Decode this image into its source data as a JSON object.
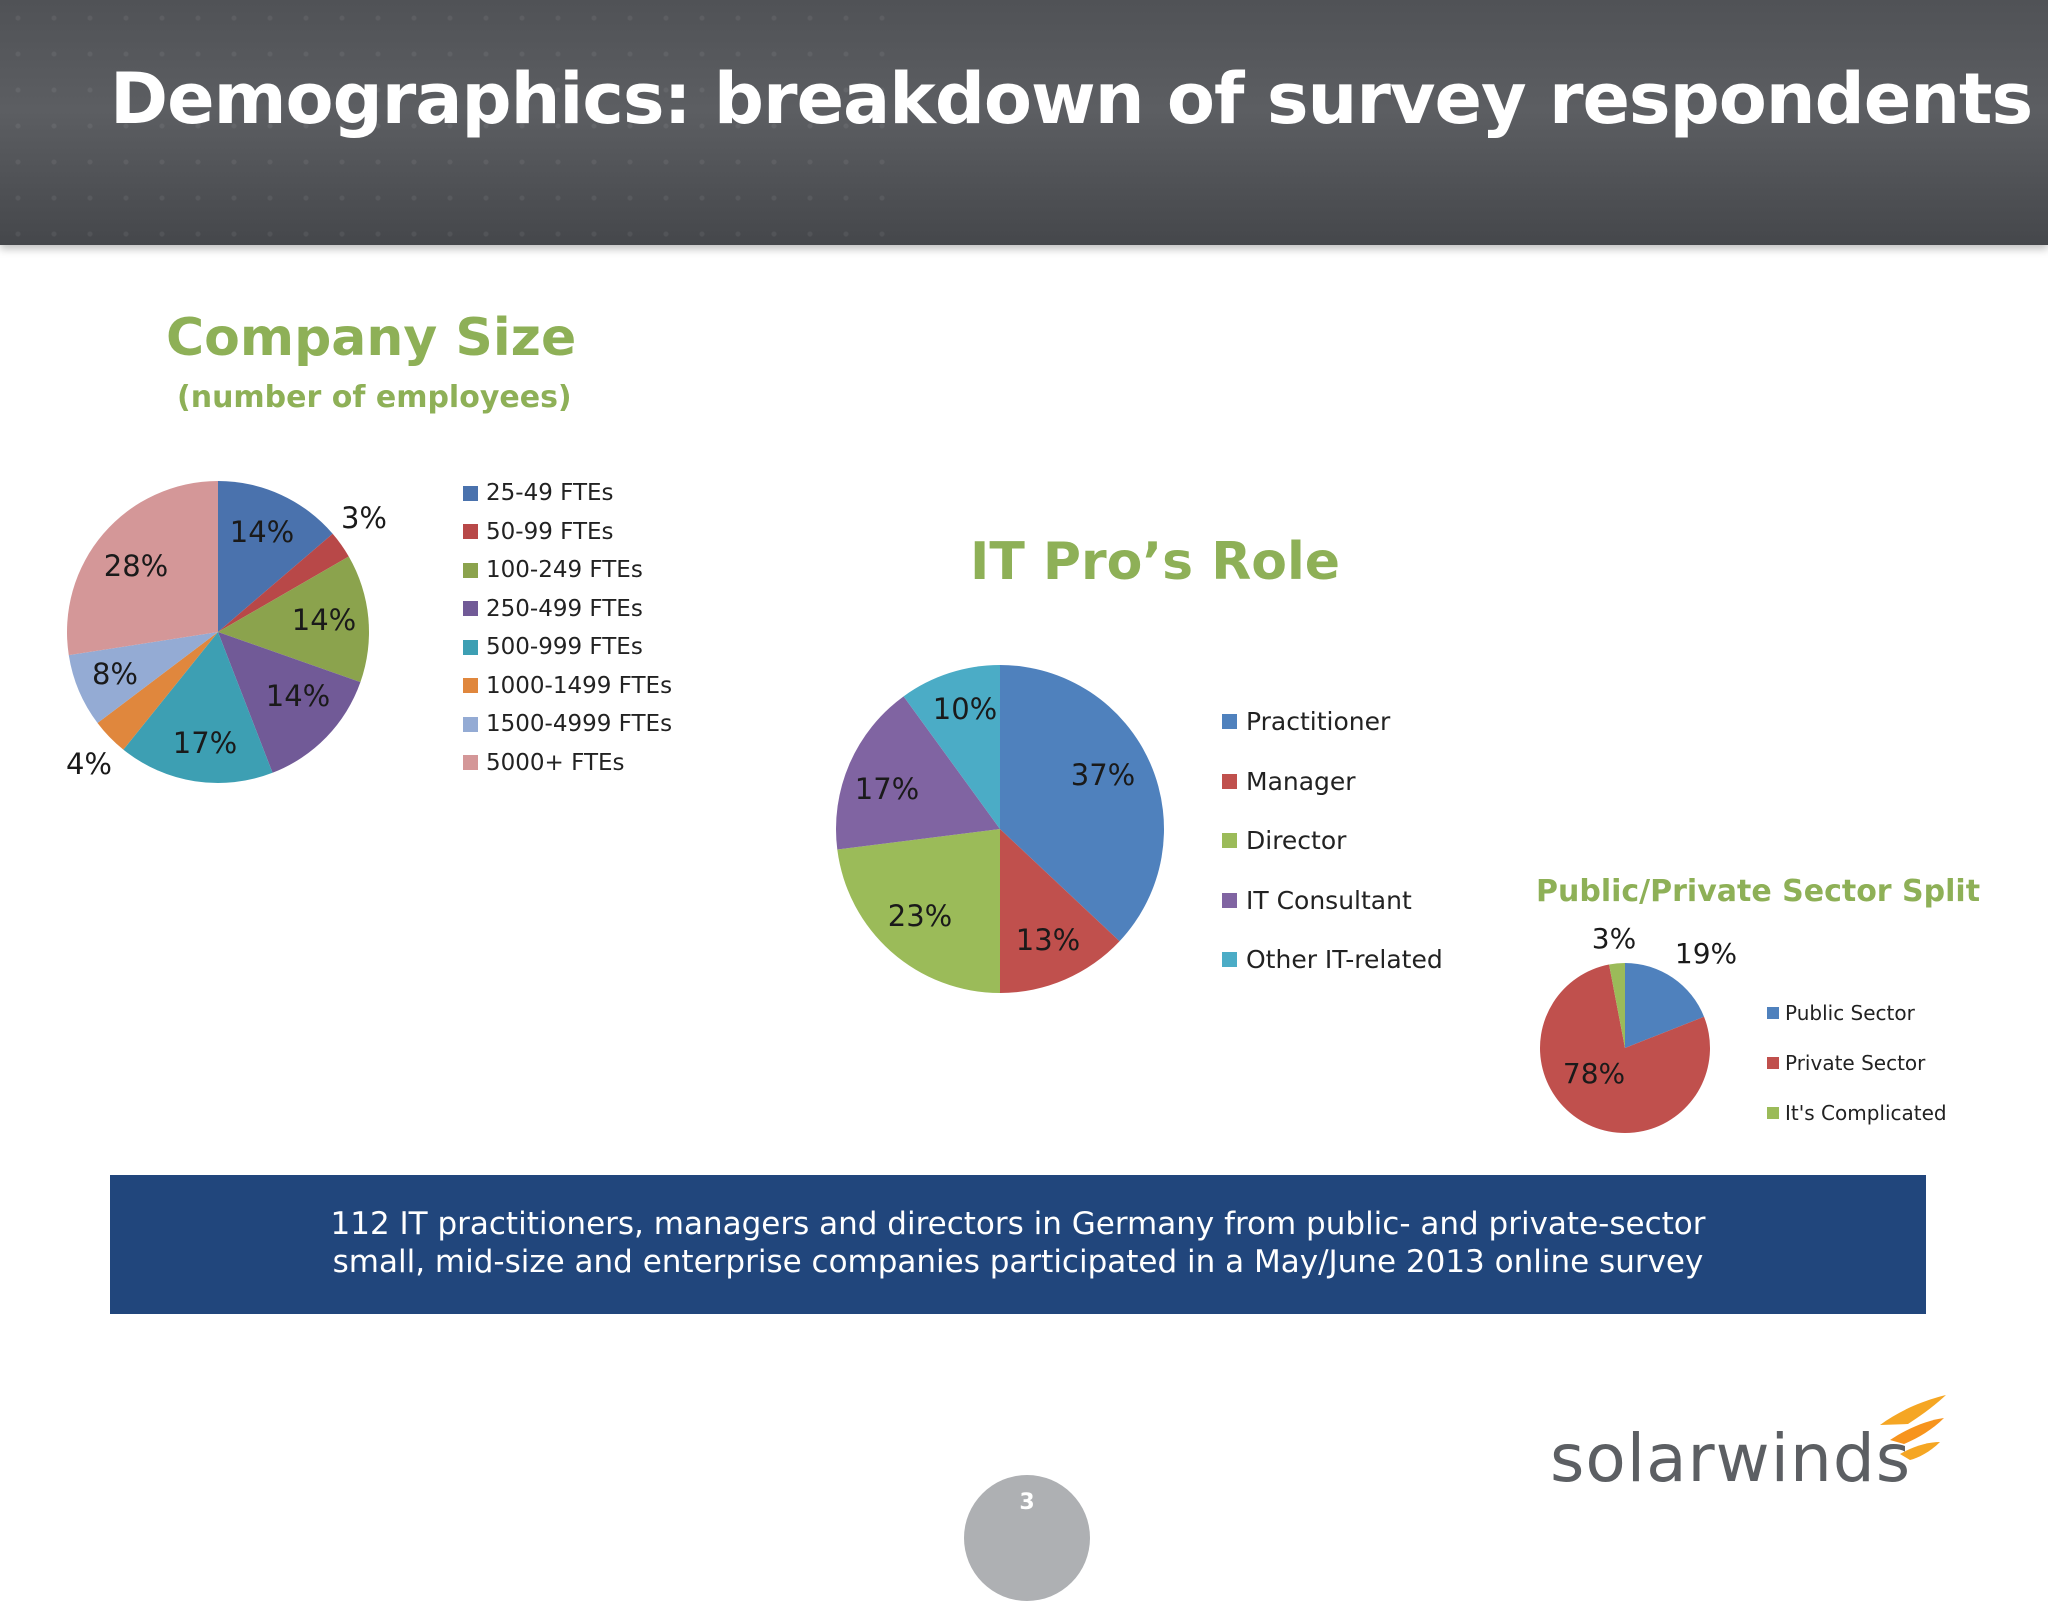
{
  "header": {
    "title": "Demographics: breakdown of survey respondents"
  },
  "chart_data": [
    {
      "type": "pie",
      "title": "Company Size",
      "subtitle": "(number of employees)",
      "categories": [
        "25-49 FTEs",
        "50-99 FTEs",
        "100-249 FTEs",
        "250-499 FTEs",
        "500-999 FTEs",
        "1000-1499 FTEs",
        "1500-4999 FTEs",
        "5000+ FTEs"
      ],
      "values": [
        14,
        3,
        14,
        14,
        17,
        4,
        8,
        28
      ],
      "labels": [
        "14%",
        "3%",
        "14%",
        "14%",
        "17%",
        "4%",
        "8%",
        "28%"
      ],
      "colors": [
        "#4a72ad",
        "#b84848",
        "#8ba34d",
        "#715a97",
        "#3d9fb3",
        "#e0873d",
        "#94abd4",
        "#d49798"
      ],
      "legend": "right"
    },
    {
      "type": "pie",
      "title": "IT Pro’s Role",
      "categories": [
        "Practitioner",
        "Manager",
        "Director",
        "IT Consultant",
        "Other IT-related"
      ],
      "values": [
        37,
        13,
        23,
        17,
        10
      ],
      "labels": [
        "37%",
        "13%",
        "23%",
        "17%",
        "10%"
      ],
      "colors": [
        "#4f81bd",
        "#c0504d",
        "#9bbb59",
        "#8064a2",
        "#4bacc6"
      ],
      "legend": "right"
    },
    {
      "type": "pie",
      "title": "Public/Private Sector Split",
      "categories": [
        "Public Sector",
        "Private Sector",
        "It's Complicated"
      ],
      "values": [
        19,
        78,
        3
      ],
      "labels": [
        "19%",
        "78%",
        "3%"
      ],
      "colors": [
        "#4f81bd",
        "#c0504d",
        "#9bbb59"
      ],
      "legend": "right"
    }
  ],
  "banner": {
    "line1": "112 IT practitioners, managers and directors in Germany from public- and private-sector",
    "line2": "small, mid-size and enterprise companies participated in a May/June 2013 online survey"
  },
  "logo": {
    "text": "solarwinds",
    "icon": "solarwinds-flame-icon"
  },
  "page_number": "3"
}
